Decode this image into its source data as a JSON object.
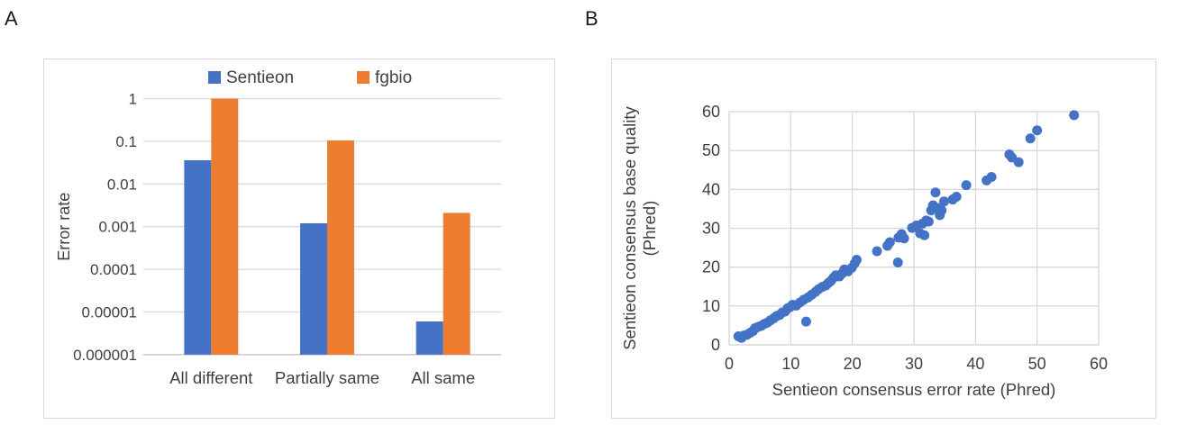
{
  "panels": [
    {
      "label": "A"
    },
    {
      "label": "B"
    }
  ],
  "colors": {
    "sentieon_blue": "#4472C4",
    "fgbio_orange": "#ED7D31",
    "gridline": "#D9D9D9",
    "axis_line": "#BFBFBF",
    "axis_text": "#404040",
    "panel_border": "#D9D9D9"
  },
  "chart_data": [
    {
      "type": "bar",
      "panel": "A",
      "scale": "log",
      "categories": [
        "All different",
        "Partially same",
        "All same"
      ],
      "series": [
        {
          "name": "Sentieon",
          "color": "#4472C4",
          "values": [
            0.036,
            0.0012,
            6e-06
          ]
        },
        {
          "name": "fgbio",
          "color": "#ED7D31",
          "values": [
            1.0,
            0.105,
            0.0021
          ]
        }
      ],
      "title": "",
      "xlabel": "",
      "ylabel": "Error rate",
      "y_ticks": [
        "1",
        "0.1",
        "0.01",
        "0.001",
        "0.0001",
        "0.00001",
        "0.000001"
      ],
      "ylim": [
        1e-06,
        1
      ],
      "grid": true,
      "legend_position": "top"
    },
    {
      "type": "scatter",
      "panel": "B",
      "title": "",
      "xlabel": "Sentieon consensus error rate (Phred)",
      "ylabel": "Sentieon consensus base quality (Phred)",
      "ylabel_lines": [
        "Sentieon consensus base quality",
        "(Phred)"
      ],
      "xlim": [
        0,
        60
      ],
      "ylim": [
        0,
        60
      ],
      "x_ticks": [
        0,
        10,
        20,
        30,
        40,
        50,
        60
      ],
      "y_ticks": [
        0,
        10,
        20,
        30,
        40,
        50,
        60
      ],
      "marker_color": "#4472C4",
      "grid": true,
      "points": [
        [
          1.5,
          2.2
        ],
        [
          2.0,
          1.8
        ],
        [
          2.4,
          2.4
        ],
        [
          2.9,
          2.6
        ],
        [
          3.4,
          3.1
        ],
        [
          3.9,
          3.6
        ],
        [
          4.2,
          4.3
        ],
        [
          4.7,
          4.6
        ],
        [
          5.2,
          4.9
        ],
        [
          5.7,
          5.4
        ],
        [
          6.2,
          5.7
        ],
        [
          6.7,
          6.3
        ],
        [
          7.2,
          6.8
        ],
        [
          7.7,
          7.4
        ],
        [
          8.2,
          7.7
        ],
        [
          8.6,
          8.3
        ],
        [
          9.1,
          8.6
        ],
        [
          9.5,
          9.4
        ],
        [
          9.9,
          9.7
        ],
        [
          10.3,
          10.3
        ],
        [
          10.9,
          10.1
        ],
        [
          11.5,
          10.9
        ],
        [
          12.1,
          11.6
        ],
        [
          12.5,
          6.0
        ],
        [
          12.8,
          12.2
        ],
        [
          13.4,
          12.9
        ],
        [
          14.0,
          13.6
        ],
        [
          14.5,
          14.3
        ],
        [
          15.1,
          14.9
        ],
        [
          15.7,
          15.3
        ],
        [
          16.1,
          15.9
        ],
        [
          16.5,
          16.4
        ],
        [
          16.9,
          17.2
        ],
        [
          17.3,
          17.9
        ],
        [
          17.9,
          17.6
        ],
        [
          18.3,
          18.3
        ],
        [
          18.7,
          19.4
        ],
        [
          19.3,
          18.9
        ],
        [
          19.9,
          19.8
        ],
        [
          20.4,
          21.0
        ],
        [
          20.7,
          21.9
        ],
        [
          24.0,
          24.1
        ],
        [
          25.7,
          25.5
        ],
        [
          26.1,
          26.4
        ],
        [
          27.4,
          21.2
        ],
        [
          27.5,
          27.6
        ],
        [
          28.0,
          28.5
        ],
        [
          28.4,
          27.4
        ],
        [
          29.7,
          30.1
        ],
        [
          30.4,
          30.7
        ],
        [
          31.0,
          28.7
        ],
        [
          31.4,
          31.2
        ],
        [
          31.7,
          28.2
        ],
        [
          32.0,
          32.0
        ],
        [
          32.4,
          31.7
        ],
        [
          32.8,
          34.6
        ],
        [
          33.1,
          35.9
        ],
        [
          33.5,
          39.2
        ],
        [
          33.8,
          35.2
        ],
        [
          34.2,
          33.4
        ],
        [
          34.5,
          34.6
        ],
        [
          34.9,
          36.9
        ],
        [
          36.3,
          37.4
        ],
        [
          36.9,
          38.1
        ],
        [
          38.5,
          41.1
        ],
        [
          41.8,
          42.3
        ],
        [
          42.6,
          43.2
        ],
        [
          45.5,
          49.0
        ],
        [
          45.9,
          48.2
        ],
        [
          47.0,
          47.0
        ],
        [
          48.9,
          53.1
        ],
        [
          50.0,
          55.2
        ],
        [
          56.0,
          59.1
        ]
      ]
    }
  ]
}
